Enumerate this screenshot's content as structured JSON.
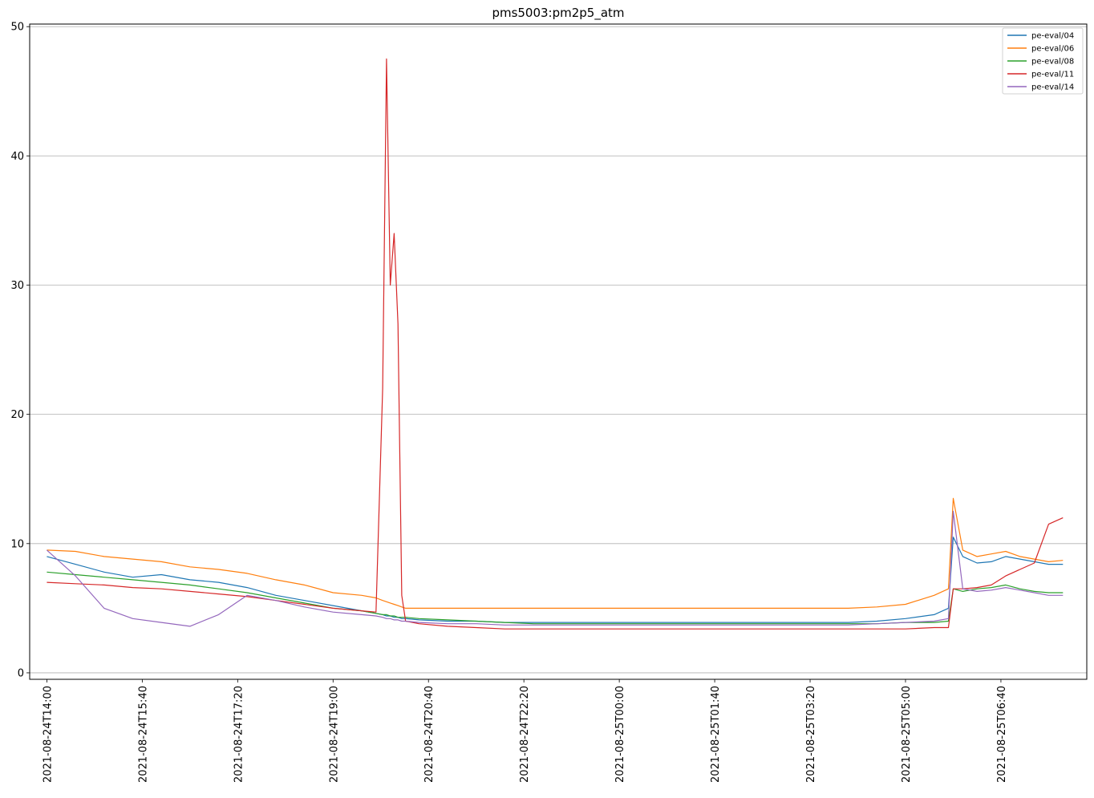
{
  "chart_data": {
    "type": "line",
    "title": "pms5003:pm2p5_atm",
    "xlabel": "",
    "ylabel": "",
    "x_ticks": [
      "2021-08-24T14:00",
      "2021-08-24T15:40",
      "2021-08-24T17:20",
      "2021-08-24T19:00",
      "2021-08-24T20:40",
      "2021-08-24T22:20",
      "2021-08-25T00:00",
      "2021-08-25T01:40",
      "2021-08-25T03:20",
      "2021-08-25T05:00",
      "2021-08-25T06:40"
    ],
    "y_ticks": [
      "0",
      "10",
      "20",
      "30",
      "40",
      "50"
    ],
    "xlim": [
      "2021-08-24T13:42",
      "2021-08-25T08:10"
    ],
    "ylim": [
      -0.5,
      50.2
    ],
    "grid": "y-major",
    "legend_position": "top-right",
    "x": [
      "2021-08-24T14:00",
      "2021-08-24T14:30",
      "2021-08-24T15:00",
      "2021-08-24T15:30",
      "2021-08-24T16:00",
      "2021-08-24T16:30",
      "2021-08-24T17:00",
      "2021-08-24T17:30",
      "2021-08-24T18:00",
      "2021-08-24T18:30",
      "2021-08-24T19:00",
      "2021-08-24T19:30",
      "2021-08-24T19:45",
      "2021-08-24T19:52",
      "2021-08-24T19:56",
      "2021-08-24T20:00",
      "2021-08-24T20:04",
      "2021-08-24T20:08",
      "2021-08-24T20:12",
      "2021-08-24T20:16",
      "2021-08-24T20:30",
      "2021-08-24T21:00",
      "2021-08-24T21:30",
      "2021-08-24T22:00",
      "2021-08-24T22:30",
      "2021-08-24T23:00",
      "2021-08-24T23:30",
      "2021-08-25T00:00",
      "2021-08-25T00:30",
      "2021-08-25T01:00",
      "2021-08-25T01:30",
      "2021-08-25T02:00",
      "2021-08-25T02:30",
      "2021-08-25T03:00",
      "2021-08-25T03:30",
      "2021-08-25T04:00",
      "2021-08-25T04:30",
      "2021-08-25T05:00",
      "2021-08-25T05:30",
      "2021-08-25T05:45",
      "2021-08-25T05:50",
      "2021-08-25T06:00",
      "2021-08-25T06:15",
      "2021-08-25T06:30",
      "2021-08-25T06:45",
      "2021-08-25T07:00",
      "2021-08-25T07:15",
      "2021-08-25T07:30",
      "2021-08-25T07:45"
    ],
    "series": [
      {
        "name": "pe-eval/04",
        "color": "#1f77b4",
        "values": [
          9.0,
          8.4,
          7.8,
          7.4,
          7.6,
          7.2,
          7.0,
          6.6,
          6.0,
          5.6,
          5.2,
          4.8,
          4.6,
          4.5,
          4.4,
          4.4,
          4.3,
          4.3,
          4.2,
          4.2,
          4.1,
          4.0,
          4.0,
          3.9,
          3.9,
          3.9,
          3.9,
          3.9,
          3.9,
          3.9,
          3.9,
          3.9,
          3.9,
          3.9,
          3.9,
          3.9,
          4.0,
          4.2,
          4.5,
          5.0,
          10.5,
          9.0,
          8.5,
          8.6,
          9.0,
          8.8,
          8.6,
          8.4,
          8.4
        ]
      },
      {
        "name": "pe-eval/06",
        "color": "#ff7f0e",
        "values": [
          9.5,
          9.4,
          9.0,
          8.8,
          8.6,
          8.2,
          8.0,
          7.7,
          7.2,
          6.8,
          6.2,
          6.0,
          5.8,
          5.6,
          5.5,
          5.4,
          5.3,
          5.2,
          5.1,
          5.0,
          5.0,
          5.0,
          5.0,
          5.0,
          5.0,
          5.0,
          5.0,
          5.0,
          5.0,
          5.0,
          5.0,
          5.0,
          5.0,
          5.0,
          5.0,
          5.0,
          5.1,
          5.3,
          6.0,
          6.5,
          13.5,
          9.5,
          9.0,
          9.2,
          9.4,
          9.0,
          8.8,
          8.6,
          8.7
        ]
      },
      {
        "name": "pe-eval/08",
        "color": "#2ca02c",
        "values": [
          7.8,
          7.6,
          7.4,
          7.2,
          7.0,
          6.8,
          6.5,
          6.2,
          5.8,
          5.4,
          5.0,
          4.8,
          4.6,
          4.5,
          4.5,
          4.4,
          4.4,
          4.3,
          4.3,
          4.3,
          4.2,
          4.1,
          4.0,
          3.9,
          3.8,
          3.8,
          3.8,
          3.8,
          3.8,
          3.8,
          3.8,
          3.8,
          3.8,
          3.8,
          3.8,
          3.8,
          3.8,
          3.9,
          3.9,
          4.0,
          6.5,
          6.3,
          6.5,
          6.6,
          6.8,
          6.5,
          6.3,
          6.2,
          6.2
        ]
      },
      {
        "name": "pe-eval/11",
        "color": "#d62728",
        "values": [
          7.0,
          6.9,
          6.8,
          6.6,
          6.5,
          6.3,
          6.1,
          5.9,
          5.6,
          5.3,
          5.0,
          4.8,
          4.7,
          22.0,
          47.5,
          30.0,
          34.0,
          27.0,
          6.0,
          4.0,
          3.8,
          3.6,
          3.5,
          3.4,
          3.4,
          3.4,
          3.4,
          3.4,
          3.4,
          3.4,
          3.4,
          3.4,
          3.4,
          3.4,
          3.4,
          3.4,
          3.4,
          3.4,
          3.5,
          3.5,
          6.5,
          6.5,
          6.6,
          6.8,
          7.5,
          8.0,
          8.5,
          11.5,
          12.0
        ]
      },
      {
        "name": "pe-eval/14",
        "color": "#9467bd",
        "values": [
          9.5,
          7.5,
          5.0,
          4.2,
          3.9,
          3.6,
          4.5,
          6.0,
          5.6,
          5.1,
          4.7,
          4.5,
          4.4,
          4.3,
          4.2,
          4.2,
          4.1,
          4.1,
          4.0,
          4.0,
          3.9,
          3.8,
          3.8,
          3.7,
          3.7,
          3.7,
          3.7,
          3.7,
          3.7,
          3.7,
          3.7,
          3.7,
          3.7,
          3.7,
          3.7,
          3.7,
          3.8,
          3.9,
          4.0,
          4.2,
          12.5,
          6.5,
          6.3,
          6.4,
          6.6,
          6.4,
          6.2,
          6.0,
          6.0
        ]
      }
    ]
  }
}
